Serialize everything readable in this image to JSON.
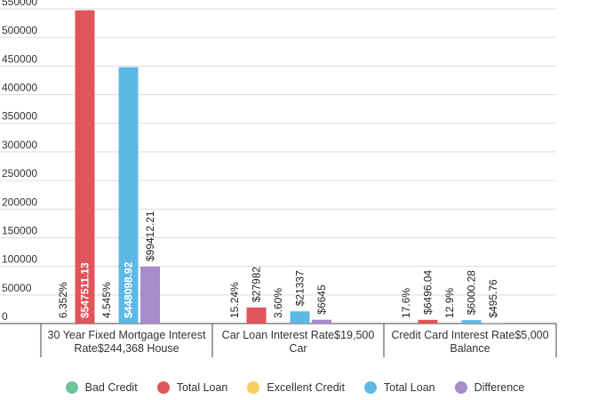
{
  "chart_data": {
    "type": "bar",
    "ylim": [
      0,
      550000
    ],
    "y_ticks": [
      0,
      50000,
      100000,
      150000,
      200000,
      250000,
      300000,
      350000,
      400000,
      450000,
      500000,
      550000
    ],
    "y_tick_labels": [
      "0",
      "50000",
      "100000",
      "150000",
      "200000",
      "250000",
      "300000",
      "350000",
      "400000",
      "450000",
      "500000",
      "550000"
    ],
    "grid": true,
    "legend_position": "bottom",
    "categories": [
      [
        "30 Year Fixed Mortgage Interest",
        "Rate$244,368 House"
      ],
      [
        "Car Loan Interest Rate$19,500",
        "Car"
      ],
      [
        "Credit Card Interest Rate$5,000",
        "Balance"
      ]
    ],
    "series": [
      {
        "name": "Bad Credit",
        "color": "#6dc59b",
        "values": [
          6.352,
          15.24,
          17.6
        ],
        "labels": [
          "6.352%",
          "15.24%",
          "17.6%"
        ]
      },
      {
        "name": "Total Loan",
        "color": "#e0555a",
        "values": [
          547511.13,
          27982,
          6496.04
        ],
        "labels": [
          "$547511.13",
          "$27982",
          "$6496.04"
        ]
      },
      {
        "name": "Excellent Credit",
        "color": "#f6d061",
        "values": [
          4.545,
          3.6,
          12.9
        ],
        "labels": [
          "4.545%",
          "3.60%",
          "12.9%"
        ]
      },
      {
        "name": "Total Loan",
        "color": "#5db8e6",
        "values": [
          448098.92,
          21337,
          6000.28
        ],
        "labels": [
          "$448098.92",
          "$21337",
          "$6000.28"
        ]
      },
      {
        "name": "Difference",
        "color": "#a98ccb",
        "values": [
          99412.21,
          6645,
          495.76
        ],
        "labels": [
          "$99412.21",
          "$6645",
          "$495.76"
        ]
      }
    ]
  }
}
